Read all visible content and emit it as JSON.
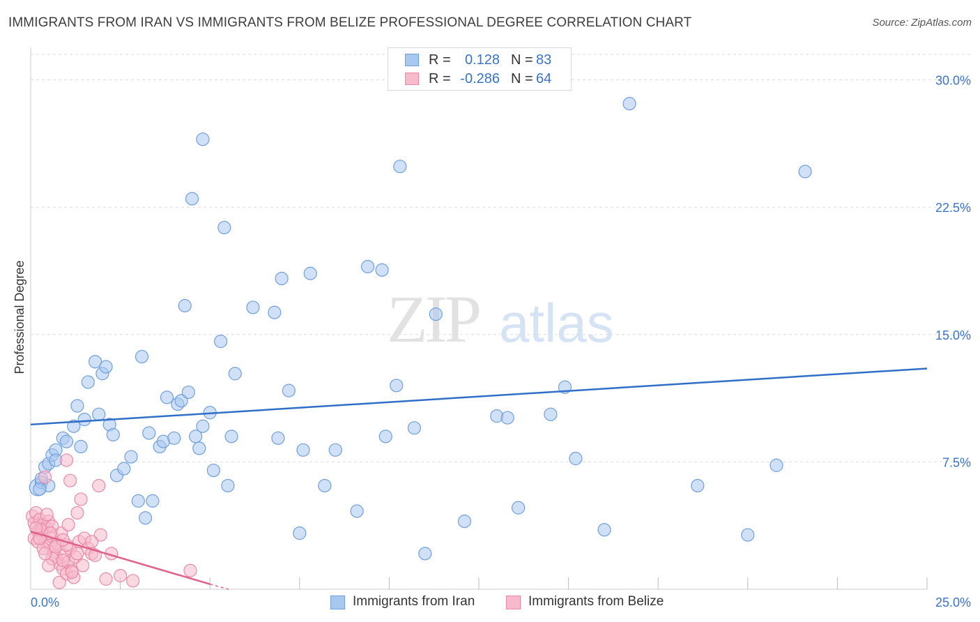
{
  "title": "IMMIGRANTS FROM IRAN VS IMMIGRANTS FROM BELIZE PROFESSIONAL DEGREE CORRELATION CHART",
  "source": "Source: ZipAtlas.com",
  "watermark": {
    "zip": "ZIP",
    "atlas": "atlas"
  },
  "legend": {
    "rows": [
      {
        "r_label": "R =",
        "r_value": "0.128",
        "n_label": "N =",
        "n_value": "83",
        "color": "#a9c8f0",
        "edge": "#6f9fdc"
      },
      {
        "r_label": "R =",
        "r_value": "-0.286",
        "n_label": "N =",
        "n_value": "64",
        "color": "#f7b9cc",
        "edge": "#e98aa8"
      }
    ]
  },
  "colors": {
    "iran_fill": "#a9c8f0",
    "iran_edge": "#6f9fdc",
    "iran_line": "#2f6fc8",
    "belize_fill": "#f7b9cc",
    "belize_edge": "#e98aa8",
    "belize_line": "#e0608a",
    "tick_label": "#3874c8",
    "grid": "#dcdcdc"
  },
  "chart_data": {
    "type": "scatter",
    "ylabel": "Professional Degree",
    "xlim": [
      0,
      25
    ],
    "ylim": [
      0,
      31.5
    ],
    "y_ticks": [
      7.5,
      15.0,
      22.5,
      30.0
    ],
    "y_tick_labels": [
      "7.5%",
      "15.0%",
      "22.5%",
      "30.0%"
    ],
    "x_tick_labels": [
      "0.0%",
      "25.0%"
    ],
    "x_tick_label_values": [
      0,
      25
    ],
    "x_minor_ticks": [
      2.5,
      5,
      7.5,
      10,
      12.5,
      15,
      17.5,
      20,
      22.5,
      25
    ],
    "grid": true,
    "legend_position": "top-center",
    "series": [
      {
        "name": "Immigrants from Iran",
        "trend": {
          "x": [
            0,
            25
          ],
          "y": [
            9.7,
            13.0
          ]
        },
        "points": [
          [
            0.2,
            6.0
          ],
          [
            0.3,
            6.3
          ],
          [
            0.4,
            7.2
          ],
          [
            0.5,
            7.4
          ],
          [
            0.6,
            7.9
          ],
          [
            0.7,
            8.2
          ],
          [
            0.9,
            8.9
          ],
          [
            1.0,
            8.7
          ],
          [
            1.2,
            9.6
          ],
          [
            1.3,
            10.8
          ],
          [
            1.4,
            8.4
          ],
          [
            1.5,
            10.0
          ],
          [
            1.6,
            12.2
          ],
          [
            1.8,
            13.4
          ],
          [
            1.9,
            10.3
          ],
          [
            2.0,
            12.7
          ],
          [
            2.1,
            13.1
          ],
          [
            2.2,
            9.7
          ],
          [
            2.3,
            9.1
          ],
          [
            2.4,
            6.7
          ],
          [
            2.6,
            7.1
          ],
          [
            2.8,
            7.8
          ],
          [
            3.0,
            5.2
          ],
          [
            3.1,
            13.7
          ],
          [
            3.2,
            4.2
          ],
          [
            3.3,
            9.2
          ],
          [
            3.4,
            5.2
          ],
          [
            3.6,
            8.4
          ],
          [
            3.7,
            8.7
          ],
          [
            3.8,
            11.3
          ],
          [
            4.0,
            8.9
          ],
          [
            4.1,
            10.9
          ],
          [
            4.2,
            11.1
          ],
          [
            4.3,
            16.7
          ],
          [
            4.4,
            11.6
          ],
          [
            4.5,
            23.0
          ],
          [
            4.6,
            9.0
          ],
          [
            4.7,
            8.3
          ],
          [
            4.8,
            9.6
          ],
          [
            5.0,
            10.4
          ],
          [
            5.1,
            7.0
          ],
          [
            5.3,
            14.6
          ],
          [
            5.4,
            21.3
          ],
          [
            5.5,
            6.1
          ],
          [
            5.6,
            9.0
          ],
          [
            5.7,
            12.7
          ],
          [
            4.8,
            26.5
          ],
          [
            6.2,
            16.6
          ],
          [
            6.8,
            16.3
          ],
          [
            7.0,
            18.3
          ],
          [
            6.9,
            8.9
          ],
          [
            7.2,
            11.7
          ],
          [
            7.5,
            3.3
          ],
          [
            7.6,
            8.2
          ],
          [
            7.8,
            18.6
          ],
          [
            8.2,
            6.1
          ],
          [
            8.5,
            8.2
          ],
          [
            9.1,
            4.6
          ],
          [
            9.4,
            19.0
          ],
          [
            9.8,
            18.8
          ],
          [
            9.9,
            9.0
          ],
          [
            10.2,
            12.0
          ],
          [
            10.3,
            24.9
          ],
          [
            10.7,
            9.5
          ],
          [
            11.0,
            2.1
          ],
          [
            11.3,
            16.2
          ],
          [
            12.1,
            4.0
          ],
          [
            13.0,
            10.2
          ],
          [
            13.3,
            10.1
          ],
          [
            13.6,
            4.8
          ],
          [
            14.5,
            10.3
          ],
          [
            14.9,
            11.9
          ],
          [
            15.2,
            7.7
          ],
          [
            16.0,
            3.5
          ],
          [
            16.7,
            28.6
          ],
          [
            18.6,
            6.1
          ],
          [
            20.0,
            3.2
          ],
          [
            20.8,
            7.3
          ],
          [
            21.6,
            24.6
          ],
          [
            0.5,
            6.1
          ],
          [
            0.7,
            7.6
          ],
          [
            0.3,
            6.5
          ],
          [
            0.25,
            5.9
          ]
        ]
      },
      {
        "name": "Immigrants from Belize",
        "trend": {
          "x": [
            0,
            5.0
          ],
          "y": [
            3.4,
            0.3
          ]
        },
        "trend_dashed": {
          "x": [
            5.0,
            5.6
          ],
          "y": [
            0.3,
            -0.05
          ]
        },
        "points": [
          [
            0.05,
            4.3
          ],
          [
            0.1,
            3.9
          ],
          [
            0.15,
            4.5
          ],
          [
            0.2,
            3.4
          ],
          [
            0.25,
            4.1
          ],
          [
            0.3,
            3.2
          ],
          [
            0.35,
            3.8
          ],
          [
            0.4,
            2.9
          ],
          [
            0.45,
            3.6
          ],
          [
            0.5,
            4.0
          ],
          [
            0.55,
            2.6
          ],
          [
            0.6,
            3.1
          ],
          [
            0.65,
            2.2
          ],
          [
            0.7,
            1.9
          ],
          [
            0.75,
            2.7
          ],
          [
            0.8,
            1.5
          ],
          [
            0.85,
            3.3
          ],
          [
            0.9,
            1.2
          ],
          [
            0.95,
            2.0
          ],
          [
            1.0,
            0.9
          ],
          [
            1.05,
            1.6
          ],
          [
            1.1,
            2.4
          ],
          [
            1.15,
            1.1
          ],
          [
            1.2,
            0.7
          ],
          [
            1.25,
            1.9
          ],
          [
            1.3,
            4.5
          ],
          [
            1.35,
            2.8
          ],
          [
            1.4,
            5.3
          ],
          [
            1.45,
            1.4
          ],
          [
            1.5,
            3.0
          ],
          [
            1.6,
            2.4
          ],
          [
            1.7,
            2.1
          ],
          [
            1.8,
            2.0
          ],
          [
            1.9,
            6.1
          ],
          [
            1.95,
            3.2
          ],
          [
            2.1,
            0.6
          ],
          [
            2.25,
            2.1
          ],
          [
            2.5,
            0.8
          ],
          [
            2.85,
            0.5
          ],
          [
            4.45,
            1.1
          ],
          [
            0.4,
            6.6
          ],
          [
            1.0,
            7.6
          ],
          [
            1.1,
            6.4
          ],
          [
            0.1,
            3.0
          ],
          [
            0.2,
            2.8
          ],
          [
            0.3,
            3.5
          ],
          [
            0.6,
            1.8
          ],
          [
            0.7,
            2.5
          ],
          [
            0.9,
            1.7
          ],
          [
            1.0,
            2.6
          ],
          [
            1.15,
            1.0
          ],
          [
            0.5,
            1.4
          ],
          [
            0.8,
            0.4
          ],
          [
            0.45,
            4.4
          ],
          [
            0.15,
            3.6
          ],
          [
            0.6,
            3.7
          ],
          [
            1.7,
            2.8
          ],
          [
            1.3,
            2.1
          ],
          [
            0.9,
            2.9
          ],
          [
            0.35,
            2.4
          ],
          [
            1.05,
            3.8
          ],
          [
            0.55,
            3.3
          ],
          [
            0.25,
            3.0
          ],
          [
            0.4,
            2.1
          ]
        ]
      }
    ]
  },
  "bottom_legend": [
    "Immigrants from Iran",
    "Immigrants from Belize"
  ]
}
